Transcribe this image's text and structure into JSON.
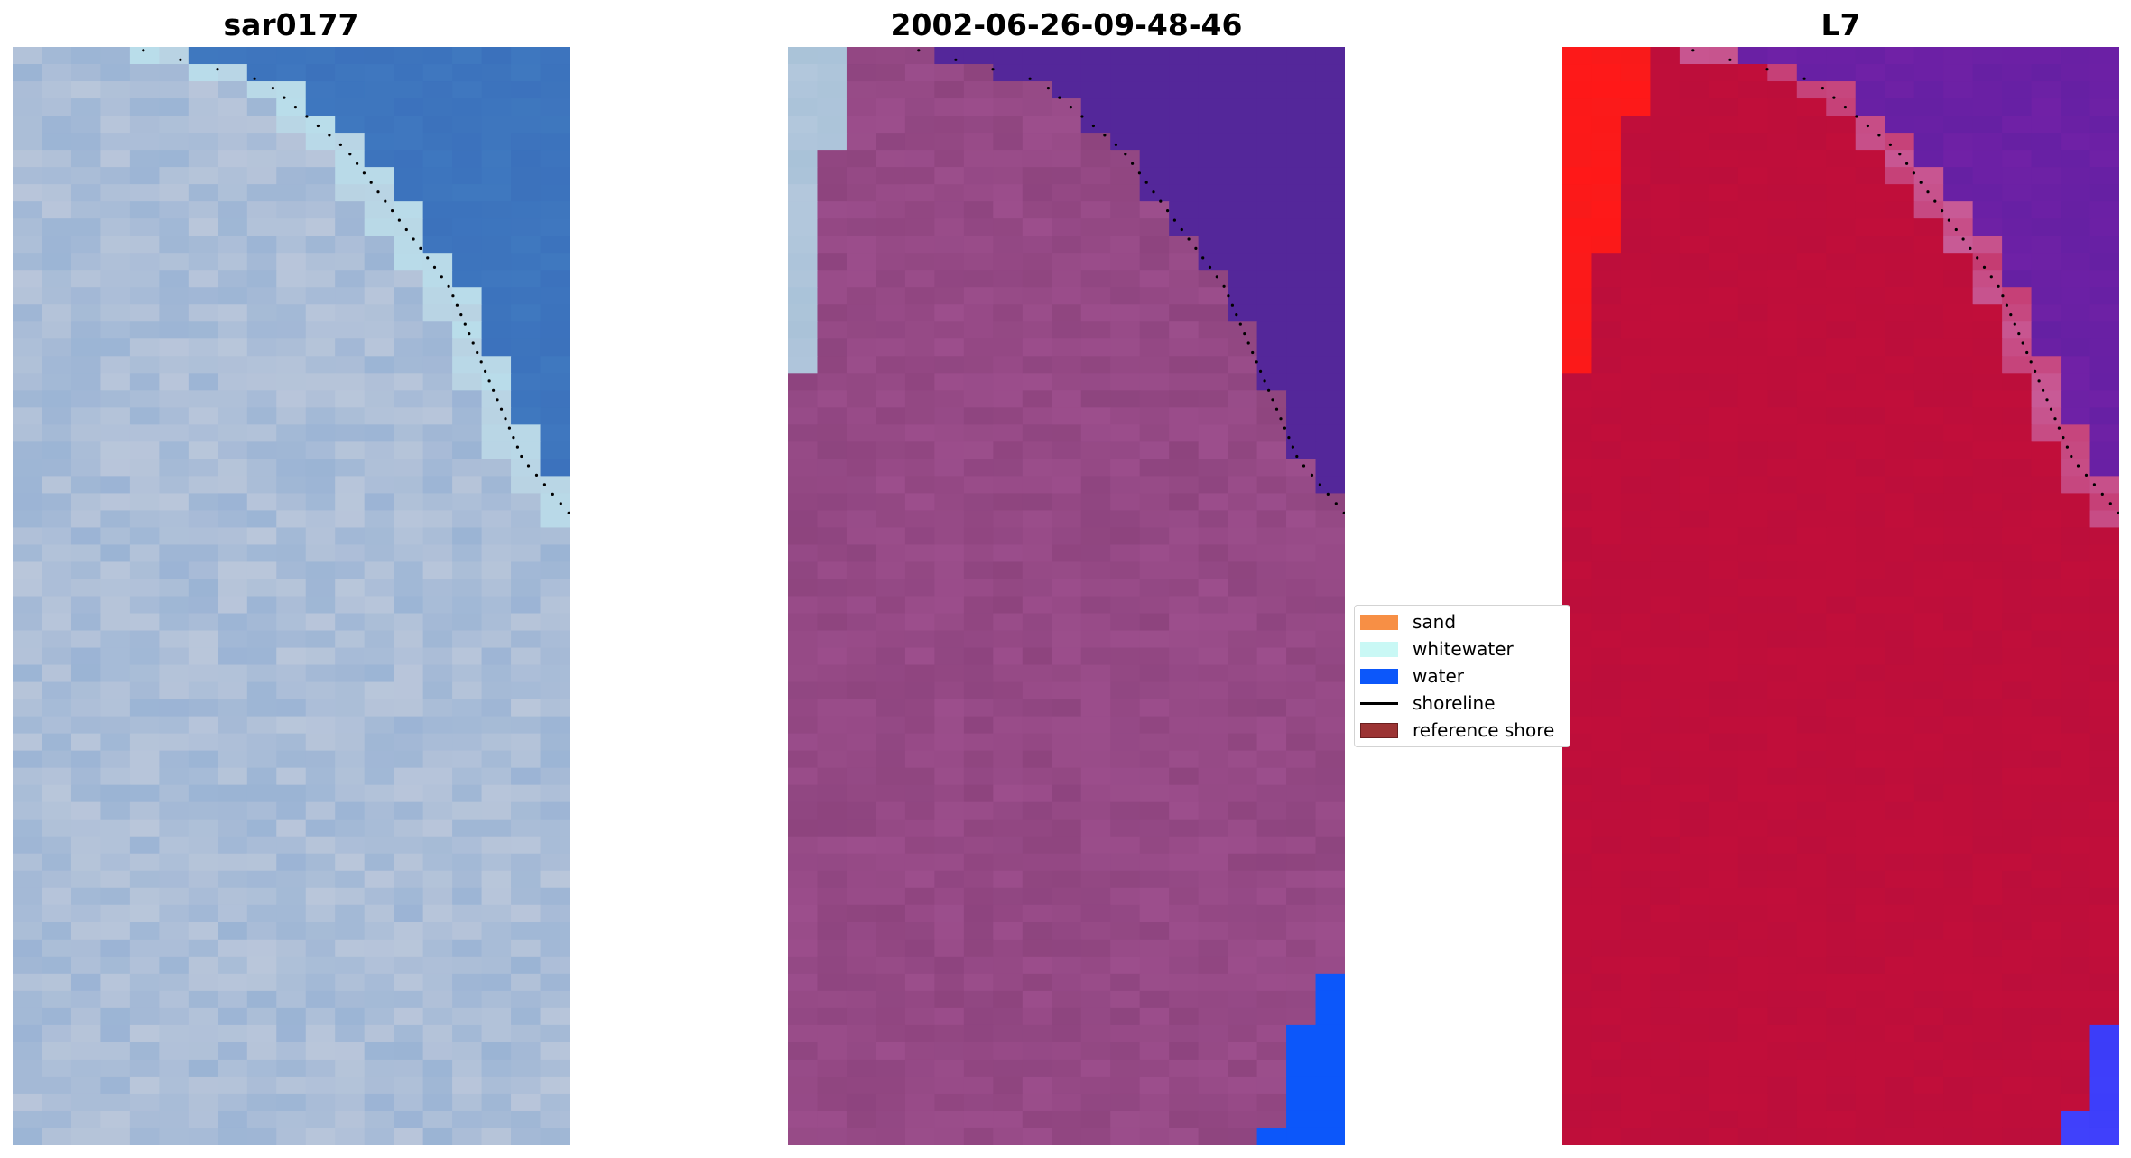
{
  "panels": [
    {
      "id": "rgb",
      "title": "sar0177"
    },
    {
      "id": "classified",
      "title": "2002-06-26-09-48-46"
    },
    {
      "id": "index",
      "title": "L7"
    }
  ],
  "legend": {
    "items": [
      {
        "label": "sand",
        "color": "#f78f45",
        "kind": "patch"
      },
      {
        "label": "whitewater",
        "color": "#c9f8f5",
        "kind": "patch"
      },
      {
        "label": "water",
        "color": "#0c57fa",
        "kind": "patch"
      },
      {
        "label": "shoreline",
        "color": "#000000",
        "kind": "line"
      },
      {
        "label": "reference shore",
        "color": "#9c3434",
        "kind": "patch"
      }
    ]
  },
  "colors": {
    "land_rgb": "#b9c6da",
    "sea_rgb": "#3f78bf",
    "land_classified": "#9c4e8c",
    "sea_classified": "#54279a",
    "whitewater_classified": "#a9c2d8",
    "water_classified": "#0c57fa",
    "land_index": "#c10e3a",
    "sea_index": "#7021a6",
    "sand_index": "#ff1818",
    "water_index": "#3b3cf8",
    "shoreline": "#000000"
  }
}
